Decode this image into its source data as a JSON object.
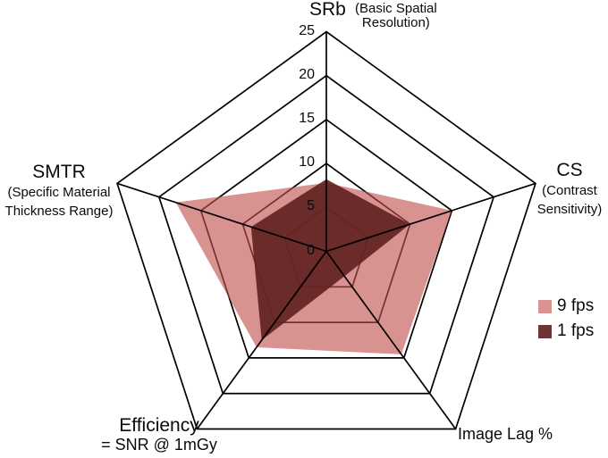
{
  "chart_data": {
    "type": "radar",
    "grid": "pentagon-rings",
    "legend_position": "right",
    "axes": [
      {
        "title": "SRb",
        "subtitle": "(Basic Spatial Resolution)"
      },
      {
        "title": "CS",
        "subtitle": "(Contrast Sensitivity)"
      },
      {
        "title": "Image Lag %",
        "subtitle": ""
      },
      {
        "title": "Efficiency",
        "subtitle": "= SNR @ 1mGy"
      },
      {
        "title": "SMTR",
        "subtitle": "(Specific Material Thickness Range)"
      }
    ],
    "scale": {
      "min": 0,
      "max": 25,
      "step": 5,
      "tick_labels": [
        "0",
        "5",
        "10",
        "15",
        "20",
        "25"
      ]
    },
    "series": [
      {
        "name": "9 fps",
        "color": "#C0504D",
        "fill_opacity": 0.62,
        "values": [
          7.8,
          15,
          14.5,
          13.5,
          18
        ]
      },
      {
        "name": "1 fps",
        "color": "#632423",
        "fill_opacity": 0.93,
        "values": [
          8.2,
          10,
          3.5,
          12.5,
          9
        ]
      }
    ],
    "line_color": "#000000"
  }
}
